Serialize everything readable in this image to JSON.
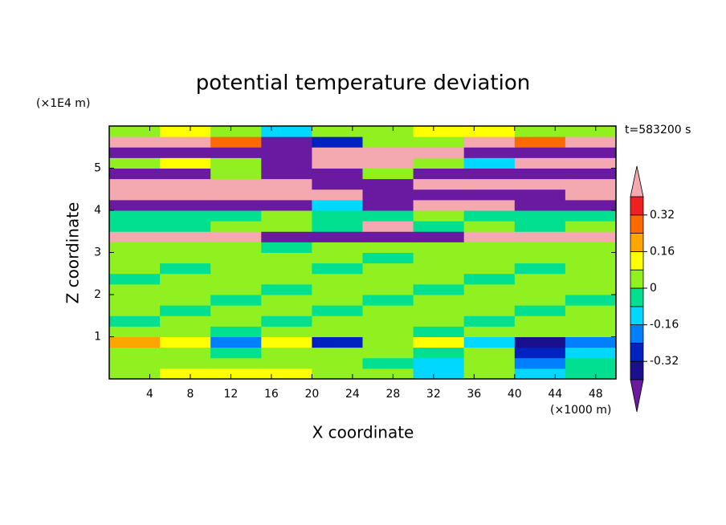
{
  "chart_data": {
    "type": "contour",
    "title": "potential temperature deviation",
    "x_label": "X coordinate",
    "y_label": "Z coordinate",
    "x_unit": "(×1000 m)",
    "y_unit": "(×1E4 m)",
    "annotation": "t=583200 s",
    "xlim": [
      0,
      50
    ],
    "ylim": [
      0,
      6
    ],
    "xticks": [
      4,
      8,
      12,
      16,
      20,
      24,
      28,
      32,
      36,
      40,
      44,
      48
    ],
    "yticks": [
      1,
      2,
      3,
      4,
      5
    ],
    "z": [
      [
        0.05,
        0.12,
        0.1,
        0.09,
        0.03,
        0.02,
        -0.1,
        0.04,
        -0.12,
        -0.05
      ],
      [
        0.03,
        0.02,
        0.06,
        0.02,
        0.01,
        -0.02,
        -0.1,
        0.02,
        -0.2,
        -0.03
      ],
      [
        0.02,
        0.04,
        -0.03,
        0.02,
        0.01,
        0.03,
        -0.05,
        0.05,
        -0.28,
        -0.1
      ],
      [
        0.22,
        0.1,
        -0.2,
        0.12,
        -0.3,
        0.05,
        0.1,
        -0.12,
        -0.35,
        -0.22
      ],
      [
        0.03,
        0.02,
        -0.02,
        0.03,
        0.02,
        0.01,
        -0.03,
        0.02,
        0.03,
        0.01
      ],
      [
        -0.03,
        0.02,
        0.03,
        -0.02,
        0.02,
        0.03,
        0.02,
        -0.02,
        0.02,
        0.03
      ],
      [
        0.02,
        -0.02,
        0.03,
        0.02,
        -0.03,
        0.02,
        0.03,
        0.02,
        -0.02,
        0.02
      ],
      [
        0.03,
        0.02,
        -0.02,
        0.03,
        0.02,
        -0.02,
        0.02,
        0.03,
        0.02,
        -0.02
      ],
      [
        0.02,
        0.03,
        0.02,
        -0.03,
        0.02,
        0.03,
        -0.02,
        0.02,
        0.03,
        0.02
      ],
      [
        -0.02,
        0.02,
        0.03,
        0.02,
        0.03,
        0.02,
        0.02,
        -0.03,
        0.02,
        0.03
      ],
      [
        0.03,
        -0.02,
        0.02,
        0.03,
        -0.02,
        0.03,
        0.02,
        0.03,
        -0.02,
        0.02
      ],
      [
        0.02,
        0.03,
        0.02,
        0.02,
        0.03,
        -0.02,
        0.03,
        0.02,
        0.03,
        0.02
      ],
      [
        0.03,
        0.02,
        0.03,
        -0.02,
        0.02,
        0.03,
        0.02,
        0.02,
        0.03,
        0.02
      ],
      [
        0.45,
        0.45,
        0.45,
        -0.45,
        -0.45,
        -0.45,
        -0.45,
        0.45,
        0.45,
        0.45
      ],
      [
        -0.03,
        -0.02,
        0.02,
        0.03,
        -0.02,
        0.45,
        -0.03,
        0.02,
        -0.02,
        0.03
      ],
      [
        -0.05,
        -0.03,
        -0.05,
        0.02,
        -0.03,
        -0.05,
        0.03,
        -0.02,
        -0.03,
        -0.05
      ],
      [
        -0.45,
        -0.45,
        -0.45,
        -0.45,
        -0.1,
        -0.45,
        0.45,
        0.45,
        -0.45,
        -0.45
      ],
      [
        0.45,
        0.45,
        0.45,
        0.45,
        0.45,
        -0.45,
        -0.45,
        -0.45,
        -0.45,
        0.45
      ],
      [
        0.45,
        0.45,
        0.45,
        0.45,
        -0.45,
        -0.45,
        0.45,
        0.45,
        0.45,
        0.45
      ],
      [
        -0.45,
        -0.45,
        0.03,
        -0.45,
        -0.45,
        0.02,
        -0.45,
        -0.45,
        -0.45,
        -0.45
      ],
      [
        0.05,
        0.12,
        0.03,
        -0.45,
        0.45,
        0.45,
        0.03,
        -0.1,
        0.45,
        0.45
      ],
      [
        -0.45,
        -0.45,
        -0.45,
        -0.45,
        0.45,
        0.45,
        0.45,
        -0.45,
        -0.45,
        -0.45
      ],
      [
        0.45,
        0.45,
        0.3,
        -0.45,
        -0.3,
        0.02,
        0.03,
        0.45,
        0.3,
        0.45
      ],
      [
        0.03,
        0.1,
        0.02,
        -0.12,
        0.03,
        0.02,
        0.12,
        0.1,
        0.03,
        0.02
      ]
    ],
    "colorbar": {
      "levels": [
        -0.4,
        -0.32,
        -0.24,
        -0.16,
        -0.08,
        0,
        0.08,
        0.16,
        0.24,
        0.32,
        0.4
      ],
      "colors": [
        "#6a1aa0",
        "#1a0f8c",
        "#0022c0",
        "#0080ff",
        "#00d8ff",
        "#00e090",
        "#90f020",
        "#ffff00",
        "#ffa500",
        "#ff6a00",
        "#ee2020",
        "#f4a8b0"
      ],
      "ticks": [
        -0.32,
        -0.16,
        0,
        0.16,
        0.32
      ]
    }
  }
}
